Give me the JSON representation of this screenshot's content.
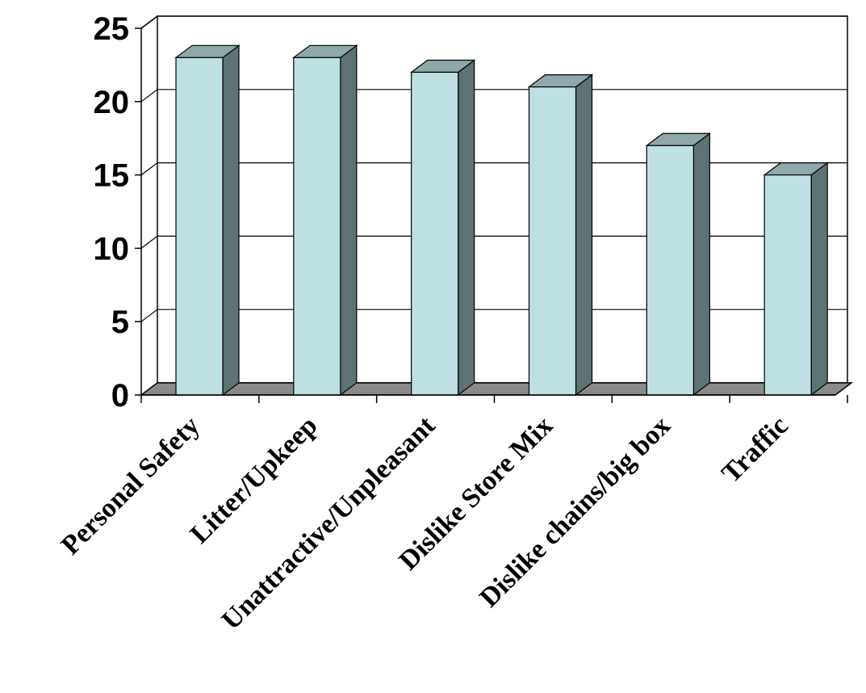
{
  "chart_data": {
    "type": "bar",
    "style": "3d-column",
    "categories": [
      "Personal Safety",
      "Litter/Upkeep",
      "Unattractive/Unpleasant",
      "Dislike Store Mix",
      "Dislike chains/big box",
      "Traffic"
    ],
    "values": [
      23,
      23,
      22,
      21,
      17,
      15
    ],
    "title": "",
    "xlabel": "",
    "ylabel": "",
    "ylim": [
      0,
      25
    ],
    "yticks": [
      0,
      5,
      10,
      15,
      20,
      25
    ],
    "grid": true,
    "legend": "none",
    "colors": {
      "bar_front": "#BEE0E3",
      "bar_top": "#8FA8AA",
      "bar_side": "#5E7173",
      "floor": "#8A8A8A",
      "grid": "#000000",
      "wall": "#FFFFFF"
    }
  }
}
